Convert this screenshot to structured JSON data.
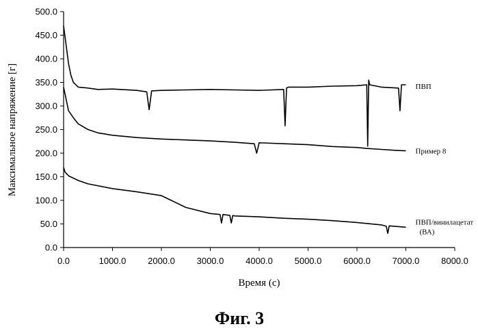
{
  "chart_data": {
    "type": "line",
    "xlabel": "Время (с)",
    "ylabel": "Максимальное напряжение [г]",
    "xlim": [
      0,
      8000
    ],
    "ylim": [
      0,
      500
    ],
    "x_ticks": [
      "0.0",
      "1000.0",
      "2000.0",
      "3000.0",
      "4000.0",
      "5000.0",
      "6000.0",
      "7000.0",
      "8000.0"
    ],
    "y_ticks": [
      "0.0",
      "50.0",
      "100.0",
      "150.0",
      "200.0",
      "250.0",
      "300.0",
      "350.0",
      "400.0",
      "450.0",
      "500.0"
    ],
    "grid": false,
    "legend": "labels at right end of each series",
    "series": [
      {
        "name": "ПВП",
        "x": [
          0,
          50,
          100,
          150,
          200,
          300,
          500,
          700,
          1000,
          1500,
          1700,
          1750,
          1800,
          2000,
          2500,
          3000,
          3500,
          4000,
          4500,
          4530,
          4560,
          4600,
          5000,
          5500,
          6000,
          6200,
          6220,
          6240,
          6260,
          6500,
          6850,
          6880,
          6910,
          7000
        ],
        "y": [
          470,
          430,
          390,
          365,
          350,
          340,
          338,
          335,
          336,
          333,
          330,
          292,
          332,
          333,
          334,
          335,
          334,
          333,
          335,
          258,
          338,
          340,
          340,
          342,
          343,
          345,
          215,
          355,
          345,
          340,
          338,
          290,
          345,
          345
        ]
      },
      {
        "name": "Пример 8",
        "x": [
          0,
          50,
          100,
          200,
          300,
          500,
          700,
          1000,
          1500,
          2000,
          2500,
          3000,
          3500,
          3900,
          3950,
          4000,
          4500,
          5000,
          5500,
          6000,
          6200,
          6500,
          6800,
          7000
        ],
        "y": [
          340,
          315,
          290,
          275,
          262,
          250,
          243,
          238,
          233,
          230,
          228,
          226,
          223,
          220,
          200,
          222,
          220,
          218,
          214,
          212,
          210,
          208,
          206,
          205
        ]
      },
      {
        "name": "ПВП/винилацетат (ВА)",
        "x": [
          0,
          30,
          100,
          300,
          500,
          1000,
          1500,
          2000,
          2200,
          2500,
          3000,
          3200,
          3230,
          3260,
          3400,
          3430,
          3460,
          3500,
          4000,
          4500,
          5000,
          5500,
          6000,
          6500,
          6600,
          6630,
          6660,
          7000
        ],
        "y": [
          170,
          160,
          152,
          142,
          135,
          125,
          118,
          110,
          100,
          85,
          72,
          70,
          52,
          70,
          68,
          52,
          68,
          67,
          65,
          62,
          60,
          57,
          53,
          48,
          45,
          30,
          46,
          43
        ]
      }
    ]
  },
  "series_label_lines": [
    [
      "ПВП"
    ],
    [
      "Пример 8"
    ],
    [
      "ПВП/винилацетат",
      "(ВА)"
    ]
  ],
  "figure_caption": "Фиг.  3"
}
